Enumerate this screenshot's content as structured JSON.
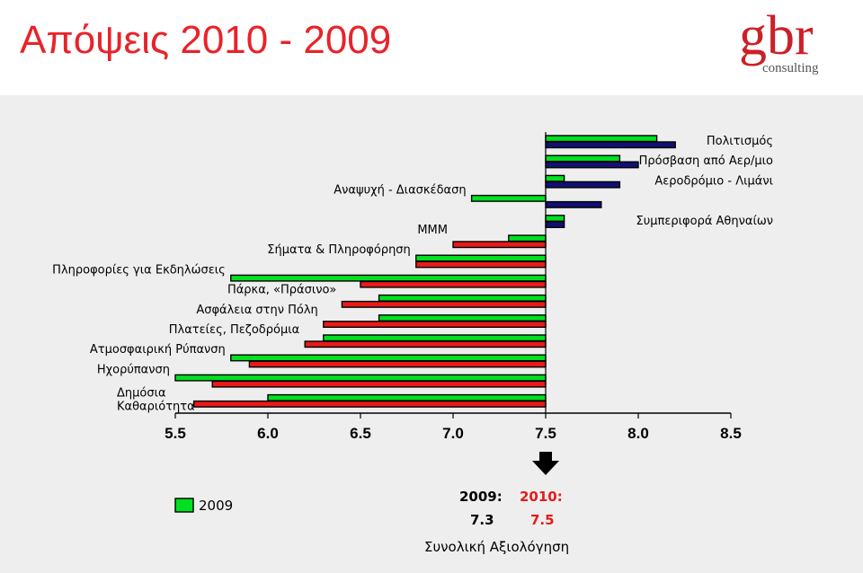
{
  "title": "Απόψεις 2010 - 2009",
  "logo": {
    "text": "gbr",
    "subtext": "consulting",
    "color": "#cc2027"
  },
  "colors": {
    "y2009": "#00e020",
    "y2010": "#e81a1a",
    "y2010_alt": "#101075",
    "axis": "#000000"
  },
  "chart_data": {
    "type": "bar",
    "orientation": "horizontal",
    "baseline": 7.5,
    "xlim": [
      5.5,
      8.5
    ],
    "xticks": [
      "5.5",
      "6.0",
      "6.5",
      "7.0",
      "7.5",
      "8.0",
      "8.5"
    ],
    "categories": [
      {
        "label": "Πολιτισμός",
        "v2009": 8.1,
        "v2010": 8.2,
        "c2010": "y2010_alt"
      },
      {
        "label": "Πρόσβαση από Αερ/μιο",
        "v2009": 7.9,
        "v2010": 8.0,
        "c2010": "y2010_alt"
      },
      {
        "label": "Αεροδρόμιο - Λιμάνι",
        "v2009": 7.6,
        "v2010": 7.9,
        "c2010": "y2010_alt"
      },
      {
        "label": "Αναψυχή - Διασκέδαση",
        "v2009": 7.1,
        "v2010": 7.8,
        "c2010": "y2010_alt"
      },
      {
        "label": "Συμπεριφορά Αθηναίων",
        "v2009": 7.6,
        "v2010": 7.6,
        "c2010": "y2010_alt"
      },
      {
        "label": "ΜΜΜ",
        "v2009": 7.3,
        "v2010": 7.0,
        "c2010": "y2010"
      },
      {
        "label": "Σήματα & Πληροφόρηση",
        "v2009": 6.8,
        "v2010": 6.8,
        "c2010": "y2010"
      },
      {
        "label": "Πληροφορίες για Εκδηλώσεις",
        "v2009": 5.8,
        "v2010": 6.5,
        "c2010": "y2010"
      },
      {
        "label": "Πάρκα, «Πράσινο»",
        "v2009": 6.6,
        "v2010": 6.4,
        "c2010": "y2010"
      },
      {
        "label": "Ασφάλεια στην Πόλη",
        "v2009": 6.6,
        "v2010": 6.3,
        "c2010": "y2010"
      },
      {
        "label": "Πλατείες, Πεζοδρόμια",
        "v2009": 6.3,
        "v2010": 6.2,
        "c2010": "y2010"
      },
      {
        "label": "Ατμοσφαιρική Ρύπανση",
        "v2009": 5.8,
        "v2010": 5.9,
        "c2010": "y2010"
      },
      {
        "label": "Ηχορύπανση",
        "v2009": 5.5,
        "v2010": 5.7,
        "c2010": "y2010"
      },
      {
        "label": "Δημόσια Καθαριότητα",
        "label_lines": [
          "Δημόσια",
          "Καθαριότητα"
        ],
        "v2009": 6.0,
        "v2010": 5.6,
        "c2010": "y2010"
      }
    ],
    "legend": {
      "label": "2009"
    },
    "overall": {
      "label_2009": "2009:",
      "value_2009": "7.3",
      "label_2010": "2010:",
      "value_2010": "7.5",
      "caption": "Συνολική Αξιολόγηση"
    }
  }
}
